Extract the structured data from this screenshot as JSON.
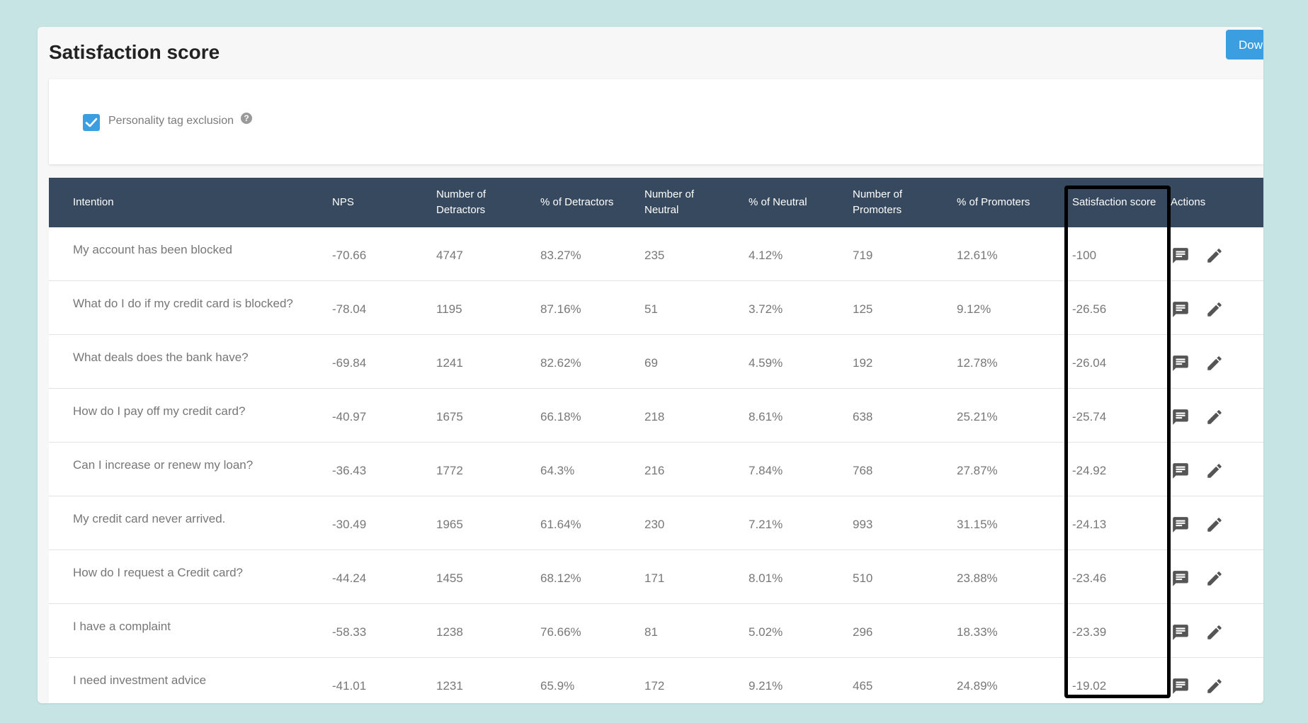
{
  "page": {
    "title": "Satisfaction score",
    "download_label": "Download"
  },
  "filter": {
    "checkbox_label": "Personality tag exclusion",
    "checked": true,
    "help_symbol": "?"
  },
  "colors": {
    "background": "#c6e4e4",
    "header_bg": "#37495e",
    "accent": "#3a9ee0",
    "highlight": "#000000"
  },
  "table": {
    "columns": [
      {
        "line1": "Intention",
        "line2": ""
      },
      {
        "line1": "NPS",
        "line2": ""
      },
      {
        "line1": "Number of",
        "line2": "Detractors"
      },
      {
        "line1": "% of Detractors",
        "line2": ""
      },
      {
        "line1": "Number of",
        "line2": "Neutral"
      },
      {
        "line1": "% of Neutral",
        "line2": ""
      },
      {
        "line1": "Number of",
        "line2": "Promoters"
      },
      {
        "line1": "% of Promoters",
        "line2": ""
      },
      {
        "line1": "Satisfaction score",
        "line2": ""
      },
      {
        "line1": "Actions",
        "line2": ""
      }
    ],
    "rows": [
      {
        "intention": "My account has been blocked",
        "nps": "-70.66",
        "detractors": "4747",
        "pct_detractors": "83.27%",
        "neutral": "235",
        "pct_neutral": "4.12%",
        "promoters": "719",
        "pct_promoters": "12.61%",
        "score": "-100"
      },
      {
        "intention": "What do I do if my credit card is blocked?",
        "nps": "-78.04",
        "detractors": "1195",
        "pct_detractors": "87.16%",
        "neutral": "51",
        "pct_neutral": "3.72%",
        "promoters": "125",
        "pct_promoters": "9.12%",
        "score": "-26.56"
      },
      {
        "intention": "What deals does the bank have?",
        "nps": "-69.84",
        "detractors": "1241",
        "pct_detractors": "82.62%",
        "neutral": "69",
        "pct_neutral": "4.59%",
        "promoters": "192",
        "pct_promoters": "12.78%",
        "score": "-26.04"
      },
      {
        "intention": "How do I pay off my credit card?",
        "nps": "-40.97",
        "detractors": "1675",
        "pct_detractors": "66.18%",
        "neutral": "218",
        "pct_neutral": "8.61%",
        "promoters": "638",
        "pct_promoters": "25.21%",
        "score": "-25.74"
      },
      {
        "intention": "Can I increase or renew my loan?",
        "nps": "-36.43",
        "detractors": "1772",
        "pct_detractors": "64.3%",
        "neutral": "216",
        "pct_neutral": "7.84%",
        "promoters": "768",
        "pct_promoters": "27.87%",
        "score": "-24.92"
      },
      {
        "intention": "My credit card never arrived.",
        "nps": "-30.49",
        "detractors": "1965",
        "pct_detractors": "61.64%",
        "neutral": "230",
        "pct_neutral": "7.21%",
        "promoters": "993",
        "pct_promoters": "31.15%",
        "score": "-24.13"
      },
      {
        "intention": "How do I request a Credit card?",
        "nps": "-44.24",
        "detractors": "1455",
        "pct_detractors": "68.12%",
        "neutral": "171",
        "pct_neutral": "8.01%",
        "promoters": "510",
        "pct_promoters": "23.88%",
        "score": "-23.46"
      },
      {
        "intention": "I have a complaint",
        "nps": "-58.33",
        "detractors": "1238",
        "pct_detractors": "76.66%",
        "neutral": "81",
        "pct_neutral": "5.02%",
        "promoters": "296",
        "pct_promoters": "18.33%",
        "score": "-23.39"
      },
      {
        "intention": "I need investment advice",
        "nps": "-41.01",
        "detractors": "1231",
        "pct_detractors": "65.9%",
        "neutral": "172",
        "pct_neutral": "9.21%",
        "promoters": "465",
        "pct_promoters": "24.89%",
        "score": "-19.02"
      }
    ],
    "row_actions": [
      {
        "icon": "comment-icon"
      },
      {
        "icon": "edit-pencil-icon"
      }
    ]
  }
}
